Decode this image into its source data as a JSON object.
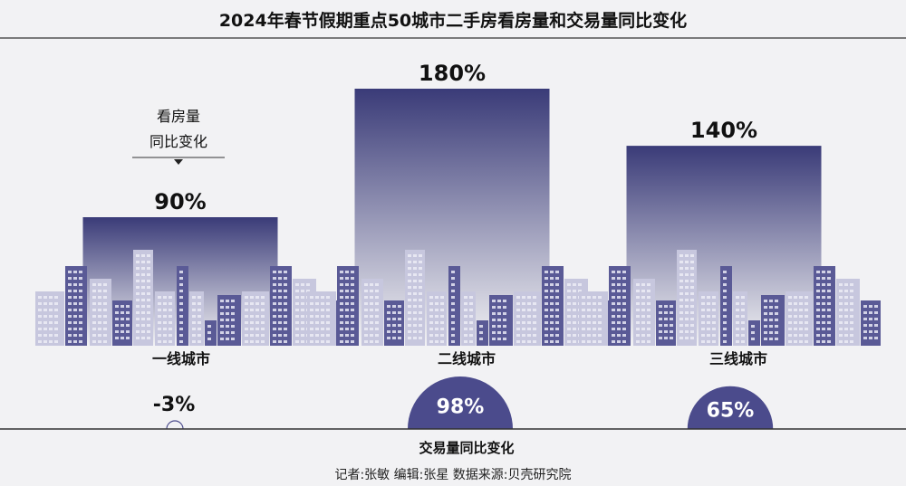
{
  "chart_data": {
    "type": "bar",
    "title": "2024年春节假期重点50城市二手房看房量和交易量同比变化",
    "categories": [
      "一线城市",
      "二线城市",
      "三线城市"
    ],
    "series": [
      {
        "name": "看房量同比变化",
        "values": [
          90,
          180,
          140
        ],
        "value_labels": [
          "90%",
          "180%",
          "140%"
        ]
      },
      {
        "name": "交易量同比变化",
        "values": [
          -3,
          98,
          65
        ],
        "value_labels": [
          "-3%",
          "98%",
          "65%"
        ]
      }
    ],
    "legend": {
      "viewing_line1": "看房量",
      "viewing_line2": "同比变化",
      "transaction": "交易量同比变化"
    },
    "ylim": [
      0,
      180
    ],
    "grid": false,
    "colors": {
      "bar_top": "#3a3b78",
      "bar_bottom": "#f2f2f4",
      "building_dark": "#5a5a96",
      "building_light": "#c7c7de",
      "circle": "#4b4b8c",
      "text": "#111111",
      "rule": "#333333"
    }
  },
  "credits": "记者:张敏    编辑:张星    数据来源:贝壳研究院"
}
